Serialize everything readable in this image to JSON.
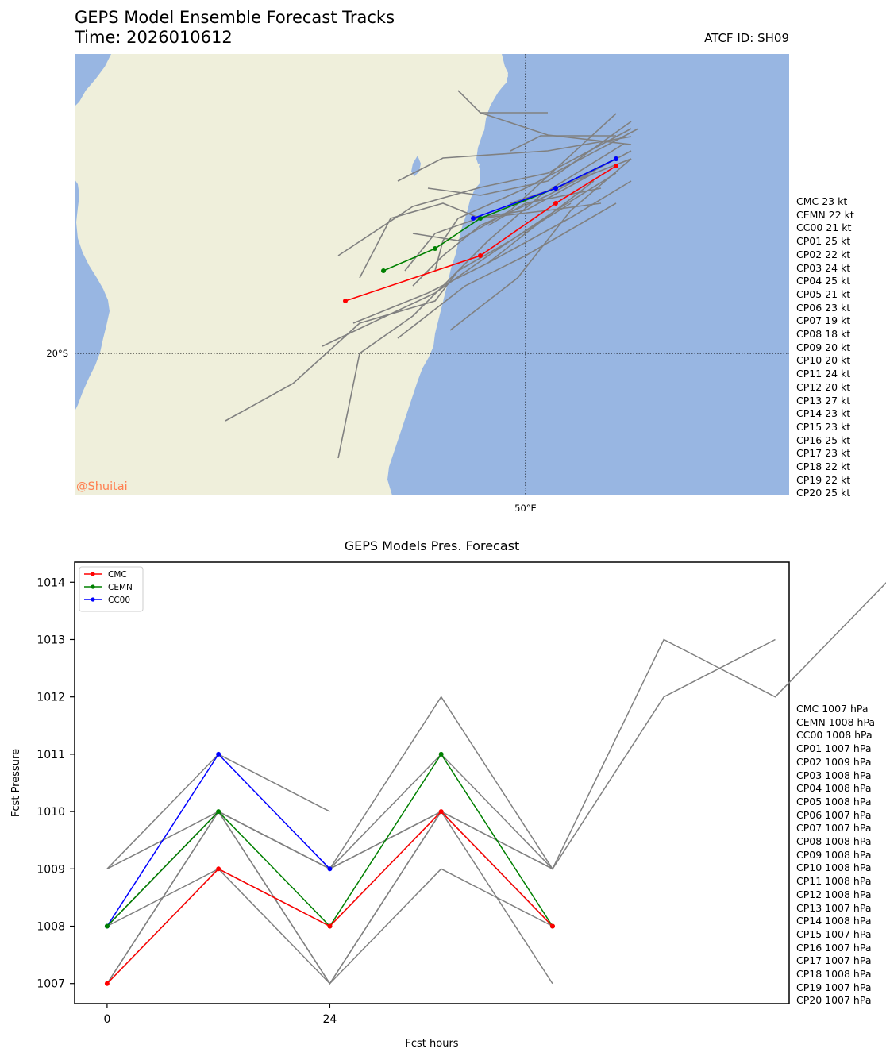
{
  "header": {
    "title_line1": "GEPS Model Ensemble Forecast Tracks",
    "title_line2": "Time: 2026010612",
    "atcf": "ATCF ID: SH09"
  },
  "map": {
    "credit": "@Shuitai",
    "lat_label": "20°S",
    "lon_label": "50°E",
    "land_color": "#efefdb",
    "ocean_color": "#98b6e2",
    "wind_list": [
      "CMC 23 kt",
      "CEMN 22 kt",
      "CC00 21 kt",
      "CP01 25 kt",
      "CP02 22 kt",
      "CP03 24 kt",
      "CP04 25 kt",
      "CP05 21 kt",
      "CP06 23 kt",
      "CP07 19 kt",
      "CP08 18 kt",
      "CP09 20 kt",
      "CP10 20 kt",
      "CP11 24 kt",
      "CP12 20 kt",
      "CP13 27 kt",
      "CP14 23 kt",
      "CP15 23 kt",
      "CP16 25 kt",
      "CP17 23 kt",
      "CP18 22 kt",
      "CP19 22 kt",
      "CP20 25 kt"
    ]
  },
  "pressure_list": [
    "CMC 1007 hPa",
    "CEMN 1008 hPa",
    "CC00 1008 hPa",
    "CP01 1007 hPa",
    "CP02 1009 hPa",
    "CP03 1008 hPa",
    "CP04 1008 hPa",
    "CP05 1008 hPa",
    "CP06 1007 hPa",
    "CP07 1007 hPa",
    "CP08 1008 hPa",
    "CP09 1008 hPa",
    "CP10 1008 hPa",
    "CP11 1008 hPa",
    "CP12 1008 hPa",
    "CP13 1007 hPa",
    "CP14 1008 hPa",
    "CP15 1007 hPa",
    "CP16 1007 hPa",
    "CP17 1007 hPa",
    "CP18 1008 hPa",
    "CP19 1007 hPa",
    "CP20 1007 hPa"
  ],
  "chart_data": {
    "type": "line",
    "title": "GEPS Models Pres. Forecast",
    "xlabel": "Fcst hours",
    "ylabel": "Fcst Pressure",
    "xlim": [
      -3.5,
      73.5
    ],
    "ylim": [
      1006.65,
      1014.35
    ],
    "xticks": [
      0,
      24
    ],
    "yticks": [
      1007,
      1008,
      1009,
      1010,
      1011,
      1012,
      1013,
      1014
    ],
    "legend_position": "upper-left",
    "colors": {
      "CMC": "#ff0000",
      "CEMN": "#008000",
      "CC00": "#0000ff",
      "member": "#808080"
    },
    "series": [
      {
        "name": "CMC",
        "x": [
          0,
          12,
          24,
          36,
          48
        ],
        "values": [
          1007,
          1009,
          1008,
          1010,
          1008
        ]
      },
      {
        "name": "CEMN",
        "x": [
          0,
          12,
          24,
          36,
          48
        ],
        "values": [
          1008,
          1010,
          1008,
          1011,
          1008
        ]
      },
      {
        "name": "CC00",
        "x": [
          0,
          12,
          24
        ],
        "values": [
          1008,
          1011,
          1009
        ]
      }
    ],
    "members": [
      {
        "x": [
          0,
          12,
          24
        ],
        "values": [
          1009,
          1011,
          1010
        ]
      },
      {
        "x": [
          0,
          12,
          24,
          36,
          48,
          60,
          72,
          84
        ],
        "values": [
          1007,
          1010,
          1009,
          1010,
          1009,
          1013,
          1012,
          1014
        ]
      },
      {
        "x": [
          0,
          12,
          24,
          36,
          48,
          60,
          72
        ],
        "values": [
          1008,
          1010,
          1009,
          1012,
          1009,
          1012,
          1013
        ]
      },
      {
        "x": [
          0,
          12,
          24,
          36,
          48
        ],
        "values": [
          1008,
          1009,
          1007,
          1010,
          1007
        ]
      },
      {
        "x": [
          0,
          12,
          24,
          36,
          48
        ],
        "values": [
          1007,
          1010,
          1007,
          1009,
          1008
        ]
      },
      {
        "x": [
          0,
          12,
          24,
          36,
          48
        ],
        "values": [
          1008,
          1010,
          1009,
          1011,
          1009
        ]
      },
      {
        "x": [
          0,
          12,
          24,
          36,
          48
        ],
        "values": [
          1009,
          1010,
          1009,
          1010,
          1009
        ]
      },
      {
        "x": [
          0,
          12,
          24,
          36,
          48
        ],
        "values": [
          1007,
          1009,
          1008,
          1010,
          1008
        ]
      },
      {
        "x": [
          0,
          12,
          24,
          36,
          48
        ],
        "values": [
          1008,
          1010,
          1007,
          1010,
          1008
        ]
      }
    ]
  }
}
